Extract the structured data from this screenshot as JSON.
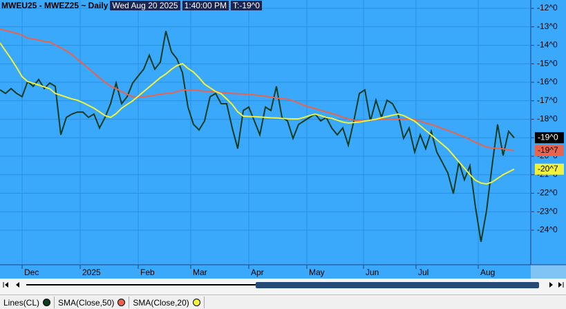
{
  "chart_data": {
    "type": "line",
    "title": "MWEU25 - MWEZ25 ~ Daily",
    "date": "Wed Aug 20 2025",
    "time": "1:40:00 PM",
    "last_trade": "T:-19^0",
    "x": [
      0,
      1,
      2,
      3,
      4,
      5,
      6,
      7,
      8,
      9,
      10,
      11,
      12,
      13,
      14,
      15,
      16,
      17,
      18,
      19,
      20,
      21,
      22,
      23,
      24,
      25,
      26,
      27,
      28,
      29,
      30,
      31,
      32,
      33,
      34,
      35,
      36,
      37,
      38,
      39,
      40,
      41,
      42,
      43,
      44,
      45,
      46,
      47,
      48,
      49,
      50,
      51,
      52,
      53,
      54,
      55,
      56,
      57,
      58,
      59,
      60,
      61,
      62,
      63,
      64,
      65,
      66,
      67,
      68,
      69,
      70,
      71,
      72,
      73,
      74,
      75,
      76,
      77,
      78,
      79,
      80,
      81,
      82,
      83,
      84,
      85,
      86,
      87,
      88,
      89,
      90,
      91,
      92,
      93
    ],
    "xlim": [
      0,
      96
    ],
    "xticks": [
      {
        "value": 4,
        "label": "Dec"
      },
      {
        "value": 14.5,
        "label": "2025"
      },
      {
        "value": 25,
        "label": "Feb"
      },
      {
        "value": 34.5,
        "label": "Mar"
      },
      {
        "value": 45,
        "label": "Apr"
      },
      {
        "value": 55.5,
        "label": "May"
      },
      {
        "value": 65.75,
        "label": "Jun"
      },
      {
        "value": 75.25,
        "label": "Jul"
      },
      {
        "value": 86.5,
        "label": "Aug"
      }
    ],
    "ylim": [
      -25.87,
      -11.55
    ],
    "yticks": [
      {
        "value": -12,
        "label": "-12^0"
      },
      {
        "value": -13,
        "label": "-13^0"
      },
      {
        "value": -14,
        "label": "-14^0"
      },
      {
        "value": -15,
        "label": "-15^0"
      },
      {
        "value": -16,
        "label": "-16^0"
      },
      {
        "value": -17,
        "label": "-17^0"
      },
      {
        "value": -18,
        "label": "-18^0"
      },
      {
        "value": -19,
        "label": "-19^0"
      },
      {
        "value": -20,
        "label": "-20^0"
      },
      {
        "value": -21,
        "label": "-21^0"
      },
      {
        "value": -22,
        "label": "-22^0"
      },
      {
        "value": -23,
        "label": "-23^0"
      },
      {
        "value": -24,
        "label": "-24^0"
      }
    ],
    "grid": true,
    "series": [
      {
        "name": "Lines(CL)",
        "color": "#0c3b1f",
        "last_label": "-19^0",
        "values": [
          -16.41,
          -16.6,
          -16.34,
          -16.6,
          -16.78,
          -15.96,
          -16.22,
          -15.85,
          -16.34,
          -16.04,
          -16.22,
          -18.84,
          -17.9,
          -17.72,
          -17.61,
          -17.61,
          -17.9,
          -17.72,
          -18.47,
          -17.9,
          -17.16,
          -16.04,
          -17.16,
          -16.78,
          -16.04,
          -15.66,
          -15.29,
          -14.54,
          -15.29,
          -14.91,
          -13.23,
          -14.35,
          -14.73,
          -15.48,
          -17.34,
          -18.28,
          -18.58,
          -18.09,
          -16.78,
          -16.6,
          -17.16,
          -17.16,
          -18.47,
          -19.59,
          -17.53,
          -17.34,
          -18.09,
          -18.84,
          -17.34,
          -17.53,
          -16.22,
          -17.9,
          -18.09,
          -19.03,
          -18.28,
          -18.09,
          -17.9,
          -17.72,
          -18.09,
          -17.9,
          -18.47,
          -18.84,
          -18.47,
          -19.4,
          -18.09,
          -16.6,
          -16.41,
          -18.09,
          -16.97,
          -17.9,
          -16.97,
          -17.16,
          -17.72,
          -19.03,
          -18.47,
          -19.77,
          -18.84,
          -19.59,
          -18.65,
          -19.77,
          -20.33,
          -20.9,
          -22.02,
          -20.33,
          -21.27,
          -20.52,
          -22.76,
          -24.63,
          -22.95,
          -20.52,
          -18.28,
          -19.96,
          -18.65,
          -19.0
        ]
      },
      {
        "name": "SMA(Close,50)",
        "color": "#e8644c",
        "last_label": "-19^7",
        "values": [
          -13.12,
          -13.2,
          -13.27,
          -13.35,
          -13.45,
          -13.61,
          -13.66,
          -13.72,
          -13.79,
          -13.82,
          -13.98,
          -14.13,
          -14.3,
          -14.5,
          -14.75,
          -15.0,
          -15.25,
          -15.5,
          -15.75,
          -16.0,
          -16.2,
          -16.35,
          -16.5,
          -16.65,
          -16.78,
          -16.78,
          -16.78,
          -16.75,
          -16.7,
          -16.65,
          -16.6,
          -16.6,
          -16.5,
          -16.42,
          -16.41,
          -16.42,
          -16.45,
          -16.48,
          -16.5,
          -16.52,
          -16.55,
          -16.57,
          -16.6,
          -16.62,
          -16.63,
          -16.65,
          -16.68,
          -16.72,
          -16.76,
          -16.8,
          -16.85,
          -16.88,
          -16.92,
          -17.0,
          -17.12,
          -17.25,
          -17.34,
          -17.42,
          -17.52,
          -17.6,
          -17.68,
          -17.78,
          -17.88,
          -17.98,
          -18.05,
          -18.08,
          -18.07,
          -18.05,
          -18.03,
          -18.0,
          -17.98,
          -17.98,
          -17.98,
          -17.98,
          -17.98,
          -18.02,
          -18.1,
          -18.2,
          -18.28,
          -18.38,
          -18.5,
          -18.6,
          -18.72,
          -18.84,
          -18.95,
          -19.1,
          -19.25,
          -19.38,
          -19.5,
          -19.55,
          -19.58,
          -19.6,
          -19.65,
          -19.7
        ]
      },
      {
        "name": "SMA(Close,20)",
        "color": "#f2f23c",
        "last_label": "-20^7",
        "values": [
          -13.87,
          -14.3,
          -14.73,
          -15.2,
          -15.7,
          -15.96,
          -16.05,
          -16.15,
          -16.25,
          -16.35,
          -16.6,
          -16.7,
          -16.8,
          -16.9,
          -16.97,
          -17.1,
          -17.25,
          -17.4,
          -17.6,
          -17.8,
          -17.9,
          -17.7,
          -17.4,
          -17.2,
          -17.0,
          -16.75,
          -16.5,
          -16.25,
          -16.0,
          -15.75,
          -15.55,
          -15.3,
          -15.1,
          -14.99,
          -15.25,
          -15.45,
          -15.75,
          -16.1,
          -16.3,
          -16.5,
          -16.62,
          -16.9,
          -17.2,
          -17.6,
          -17.83,
          -17.85,
          -17.86,
          -17.88,
          -17.9,
          -17.92,
          -17.93,
          -17.95,
          -17.97,
          -17.98,
          -17.98,
          -17.9,
          -17.8,
          -17.72,
          -17.8,
          -17.9,
          -17.95,
          -18.05,
          -18.15,
          -18.2,
          -18.18,
          -18.15,
          -18.1,
          -18.05,
          -18.0,
          -17.92,
          -17.85,
          -17.78,
          -17.72,
          -17.8,
          -17.95,
          -18.1,
          -18.35,
          -18.6,
          -18.85,
          -19.1,
          -19.35,
          -19.6,
          -19.95,
          -20.3,
          -20.65,
          -21.0,
          -21.3,
          -21.45,
          -21.5,
          -21.4,
          -21.2,
          -21.0,
          -20.85,
          -20.7
        ]
      }
    ]
  }
}
